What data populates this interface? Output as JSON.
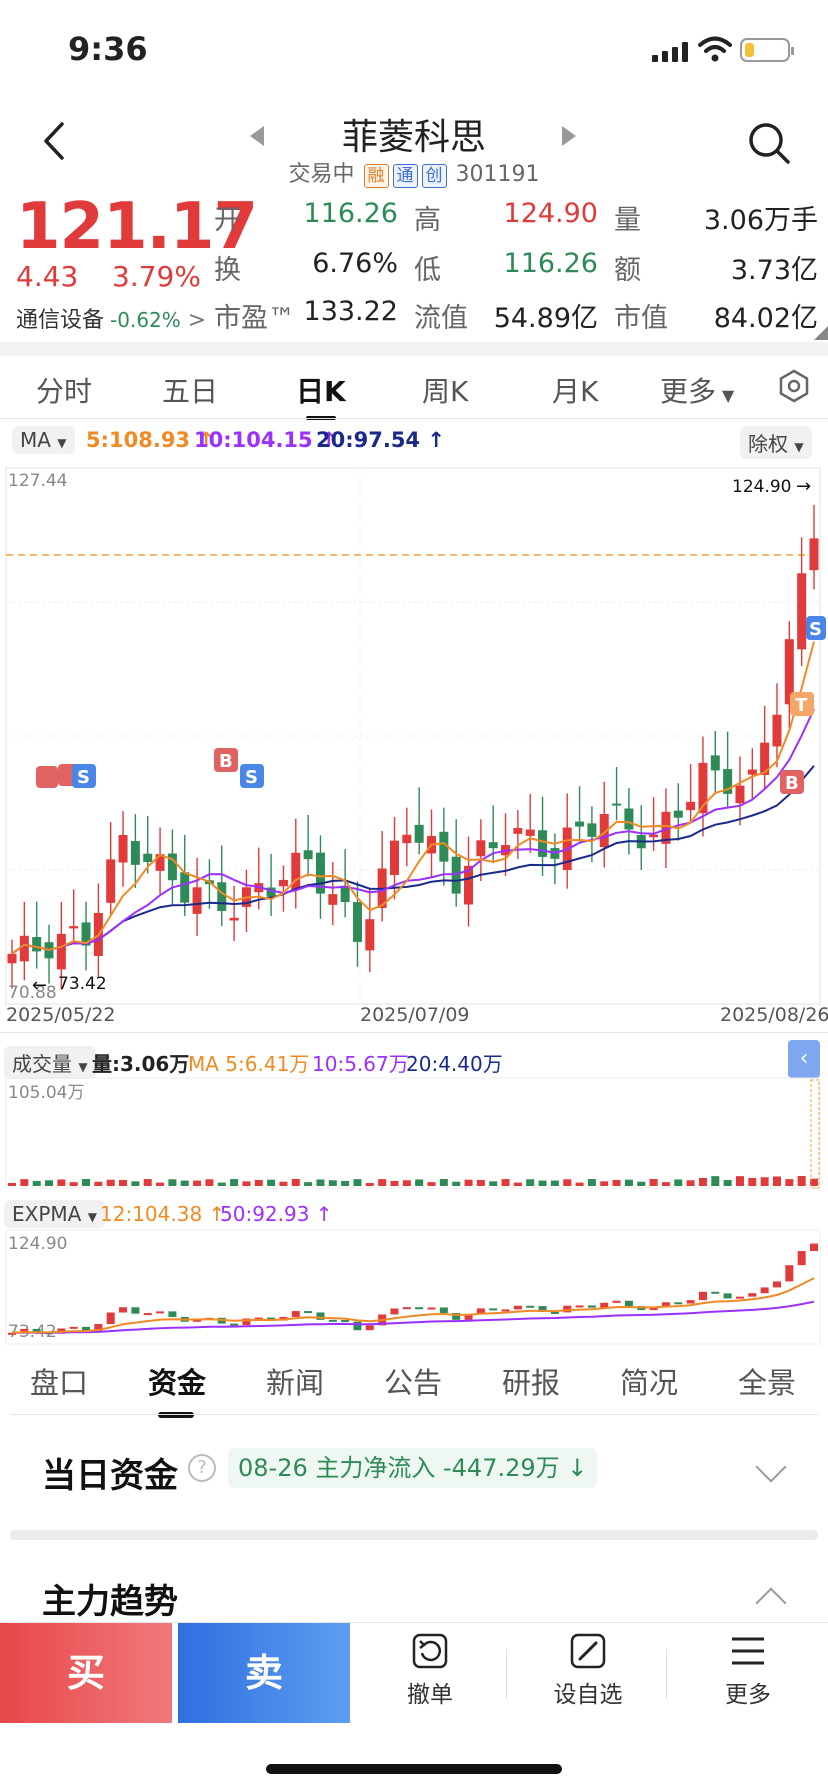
{
  "status_bar": {
    "time": "9:36"
  },
  "nav": {
    "title": "菲菱科思",
    "trading_status": "交易中",
    "tags": [
      "融",
      "通",
      "创"
    ],
    "code": "301191"
  },
  "quote": {
    "price": "121.17",
    "change": "4.43",
    "change_pct": "3.79%",
    "industry": "通信设备",
    "industry_change": "-0.62%",
    "fields": [
      {
        "label": "开",
        "value": "116.26",
        "color": "#2e8b57"
      },
      {
        "label": "高",
        "value": "124.90",
        "color": "#e03a3a"
      },
      {
        "label": "量",
        "value": "3.06万手",
        "color": "#222222"
      },
      {
        "label": "换",
        "value": "6.76%",
        "color": "#222222"
      },
      {
        "label": "低",
        "value": "116.26",
        "color": "#2e8b57"
      },
      {
        "label": "额",
        "value": "3.73亿",
        "color": "#222222"
      },
      {
        "label": "市盈™",
        "value": "133.22",
        "color": "#222222"
      },
      {
        "label": "流值",
        "value": "54.89亿",
        "color": "#222222"
      },
      {
        "label": "市值",
        "value": "84.02亿",
        "color": "#222222"
      }
    ]
  },
  "chart_tabs": [
    "分时",
    "五日",
    "日K",
    "周K",
    "月K",
    "更多"
  ],
  "chart_tab_active": "日K",
  "ma_bar": {
    "selector": "MA",
    "ma5": "5:108.93",
    "ma10": "10:104.15",
    "ma20": "20:97.54",
    "adjust": "除权"
  },
  "main_chart": {
    "y_top": "127.44",
    "y_bottom": "70.88",
    "high_marker": "124.90",
    "low_marker": "73.42",
    "dates": [
      "2025/05/22",
      "2025/07/09",
      "2025/08/26"
    ]
  },
  "volume_bar": {
    "selector": "成交量",
    "volume": "量:3.06万",
    "ma5": "MA 5:6.41万",
    "ma10": "10:5.67万",
    "ma20": "20:4.40万",
    "max": "105.04万"
  },
  "expma_bar": {
    "selector": "EXPMA",
    "e12": "12:104.38",
    "e50": "50:92.93",
    "top": "124.90",
    "bottom": "73.42"
  },
  "bottom_tabs": [
    "盘口",
    "资金",
    "新闻",
    "公告",
    "研报",
    "简况",
    "全景"
  ],
  "bottom_tab_active": "资金",
  "fund": {
    "title": "当日资金",
    "flow_text": "08-26 主力净流入 -447.29万",
    "trend_title": "主力趋势"
  },
  "actions": {
    "buy": "买",
    "sell": "卖",
    "cancel": "撤单",
    "watch": "设自选",
    "more": "更多"
  },
  "colors": {
    "up": "#e03a3a",
    "down": "#2e8b57",
    "ma5": "#f08a24",
    "ma10": "#9b30ff",
    "ma20": "#1a2a8c"
  },
  "chart_data": {
    "type": "candlestick",
    "x_range": [
      "2025/05/22",
      "2025/08/26"
    ],
    "y_range": [
      70.88,
      127.44
    ],
    "series": [
      {
        "name": "MA5",
        "last": 108.93
      },
      {
        "name": "MA10",
        "last": 104.15
      },
      {
        "name": "MA20",
        "last": 97.54
      }
    ],
    "annotations": [
      "124.90",
      "73.42"
    ]
  }
}
